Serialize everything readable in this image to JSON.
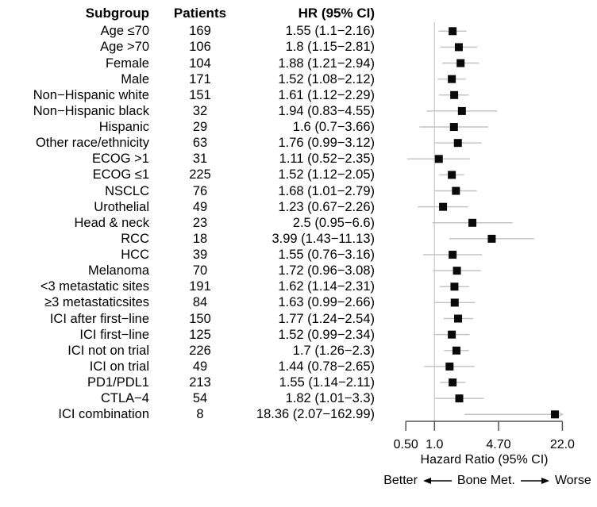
{
  "table": {
    "headers": {
      "subgroup": "Subgroup",
      "patients": "Patients",
      "hr": "HR (95% CI)"
    }
  },
  "chart_data": {
    "type": "forest",
    "x_scale": "log",
    "xlabel": "Hazard Ratio (95% CI)",
    "xlim": [
      0.5,
      22.0
    ],
    "x_ticks": [
      0.5,
      1.0,
      4.7,
      22.0
    ],
    "x_tick_labels": [
      "0.50",
      "1.0",
      "4.70",
      "22.0"
    ],
    "reference_line": 1.0,
    "grid": false,
    "direction": {
      "left": "Better",
      "center": "Bone Met.",
      "right": "Worse"
    },
    "rows": [
      {
        "subgroup": "Age ≤70",
        "patients": "169",
        "hr": 1.55,
        "ci_low": 1.1,
        "ci_high": 2.16,
        "hr_text": "1.55 (1.1−2.16)"
      },
      {
        "subgroup": "Age >70",
        "patients": "106",
        "hr": 1.8,
        "ci_low": 1.15,
        "ci_high": 2.81,
        "hr_text": "1.8 (1.15−2.81)"
      },
      {
        "subgroup": "Female",
        "patients": "104",
        "hr": 1.88,
        "ci_low": 1.21,
        "ci_high": 2.94,
        "hr_text": "1.88 (1.21−2.94)"
      },
      {
        "subgroup": "Male",
        "patients": "171",
        "hr": 1.52,
        "ci_low": 1.08,
        "ci_high": 2.12,
        "hr_text": "1.52 (1.08−2.12)"
      },
      {
        "subgroup": "Non−Hispanic white",
        "patients": "151",
        "hr": 1.61,
        "ci_low": 1.12,
        "ci_high": 2.29,
        "hr_text": "1.61 (1.12−2.29)"
      },
      {
        "subgroup": "Non−Hispanic black",
        "patients": "32",
        "hr": 1.94,
        "ci_low": 0.83,
        "ci_high": 4.55,
        "hr_text": "1.94 (0.83−4.55)"
      },
      {
        "subgroup": "Hispanic",
        "patients": "29",
        "hr": 1.6,
        "ci_low": 0.7,
        "ci_high": 3.66,
        "hr_text": "1.6 (0.7−3.66)"
      },
      {
        "subgroup": "Other race/ethnicity",
        "patients": "63",
        "hr": 1.76,
        "ci_low": 0.99,
        "ci_high": 3.12,
        "hr_text": "1.76 (0.99−3.12)"
      },
      {
        "subgroup": "ECOG >1",
        "patients": "31",
        "hr": 1.11,
        "ci_low": 0.52,
        "ci_high": 2.35,
        "hr_text": "1.11 (0.52−2.35)"
      },
      {
        "subgroup": "ECOG ≤1",
        "patients": "225",
        "hr": 1.52,
        "ci_low": 1.12,
        "ci_high": 2.05,
        "hr_text": "1.52 (1.12−2.05)"
      },
      {
        "subgroup": "NSCLC",
        "patients": "76",
        "hr": 1.68,
        "ci_low": 1.01,
        "ci_high": 2.79,
        "hr_text": "1.68 (1.01−2.79)"
      },
      {
        "subgroup": "Urothelial",
        "patients": "49",
        "hr": 1.23,
        "ci_low": 0.67,
        "ci_high": 2.26,
        "hr_text": "1.23 (0.67−2.26)"
      },
      {
        "subgroup": "Head & neck",
        "patients": "23",
        "hr": 2.5,
        "ci_low": 0.95,
        "ci_high": 6.6,
        "hr_text": "2.5 (0.95−6.6)"
      },
      {
        "subgroup": "RCC",
        "patients": "18",
        "hr": 3.99,
        "ci_low": 1.43,
        "ci_high": 11.13,
        "hr_text": "3.99 (1.43−11.13)"
      },
      {
        "subgroup": "HCC",
        "patients": "39",
        "hr": 1.55,
        "ci_low": 0.76,
        "ci_high": 3.16,
        "hr_text": "1.55 (0.76−3.16)"
      },
      {
        "subgroup": "Melanoma",
        "patients": "70",
        "hr": 1.72,
        "ci_low": 0.96,
        "ci_high": 3.08,
        "hr_text": "1.72 (0.96−3.08)"
      },
      {
        "subgroup": "<3 metastatic sites",
        "patients": "191",
        "hr": 1.62,
        "ci_low": 1.14,
        "ci_high": 2.31,
        "hr_text": "1.62 (1.14−2.31)"
      },
      {
        "subgroup": "≥3 metastaticsites",
        "patients": "84",
        "hr": 1.63,
        "ci_low": 0.99,
        "ci_high": 2.66,
        "hr_text": "1.63 (0.99−2.66)"
      },
      {
        "subgroup": "ICI after first−line",
        "patients": "150",
        "hr": 1.77,
        "ci_low": 1.24,
        "ci_high": 2.54,
        "hr_text": "1.77 (1.24−2.54)"
      },
      {
        "subgroup": "ICI first−line",
        "patients": "125",
        "hr": 1.52,
        "ci_low": 0.99,
        "ci_high": 2.34,
        "hr_text": "1.52 (0.99−2.34)"
      },
      {
        "subgroup": "ICI not on trial",
        "patients": "226",
        "hr": 1.7,
        "ci_low": 1.26,
        "ci_high": 2.3,
        "hr_text": "1.7 (1.26−2.3)"
      },
      {
        "subgroup": "ICI on trial",
        "patients": "49",
        "hr": 1.44,
        "ci_low": 0.78,
        "ci_high": 2.65,
        "hr_text": "1.44 (0.78−2.65)"
      },
      {
        "subgroup": "PD1/PDL1",
        "patients": "213",
        "hr": 1.55,
        "ci_low": 1.14,
        "ci_high": 2.11,
        "hr_text": "1.55 (1.14−2.11)"
      },
      {
        "subgroup": "CTLA−4",
        "patients": "54",
        "hr": 1.82,
        "ci_low": 1.01,
        "ci_high": 3.3,
        "hr_text": "1.82 (1.01−3.3)"
      },
      {
        "subgroup": "ICI combination",
        "patients": "8",
        "hr": 18.36,
        "ci_low": 2.07,
        "ci_high": 162.99,
        "hr_text": "18.36 (2.07−162.99)"
      }
    ],
    "colors": {
      "marker": "#0a0a0a",
      "ci_line": "#c4c4c4",
      "reference_line": "#cccccc",
      "axis": "#555555",
      "text": "#000000"
    }
  }
}
